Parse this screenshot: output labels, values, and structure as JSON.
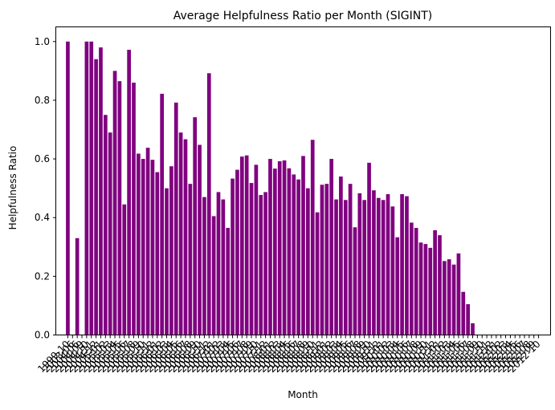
{
  "chart_data": {
    "type": "bar",
    "title": "Average Helpfulness Ratio per Month (SIGINT)",
    "xlabel": "Month",
    "ylabel": "Helpfulness Ratio",
    "ylim": [
      0,
      1.05
    ],
    "yticks": [
      0.0,
      0.2,
      0.4,
      0.6,
      0.8,
      1.0
    ],
    "ytick_labels": [
      "0.0",
      "0.2",
      "0.4",
      "0.6",
      "0.8",
      "1.0"
    ],
    "bar_color": "#800080",
    "grid": false,
    "categories": [
      "1999-10",
      "2003-06",
      "2004-06",
      "2004-09",
      "2004-10",
      "2004-11",
      "2004-12",
      "2005-01",
      "2005-02",
      "2005-03",
      "2005-04",
      "2005-05",
      "2005-06",
      "2005-07",
      "2005-08",
      "2005-09",
      "2005-10",
      "2005-11",
      "2005-12",
      "2006-01",
      "2006-02",
      "2006-03",
      "2006-04",
      "2006-05",
      "2006-06",
      "2006-07",
      "2006-08",
      "2006-09",
      "2006-10",
      "2006-11",
      "2006-12",
      "2007-01",
      "2007-02",
      "2007-03",
      "2007-04",
      "2007-05",
      "2007-06",
      "2007-07",
      "2007-08",
      "2007-09",
      "2007-10",
      "2007-11",
      "2007-12",
      "2008-01",
      "2008-02",
      "2008-03",
      "2008-04",
      "2008-05",
      "2008-06",
      "2008-07",
      "2008-08",
      "2008-09",
      "2008-10",
      "2008-11",
      "2008-12",
      "2009-01",
      "2009-02",
      "2009-03",
      "2009-04",
      "2009-05",
      "2009-06",
      "2009-07",
      "2009-08",
      "2009-09",
      "2009-10",
      "2009-11",
      "2009-12",
      "2010-01",
      "2010-02",
      "2010-03",
      "2010-04",
      "2010-05",
      "2010-06",
      "2010-07",
      "2010-08",
      "2010-09",
      "2010-10",
      "2010-11",
      "2010-12",
      "2011-01",
      "2011-02",
      "2011-03",
      "2011-04",
      "2011-05",
      "2011-06",
      "2011-07",
      "2011-08",
      "2011-09",
      "2011-10",
      "2011-11",
      "2011-12",
      "2012-01",
      "2012-02",
      "2012-03",
      "2012-04",
      "2012-05",
      "2012-06",
      "2012-07",
      "2012-08",
      "2012-09",
      "2012-10"
    ],
    "values": [
      1.0,
      null,
      0.33,
      null,
      1.0,
      1.0,
      0.94,
      0.98,
      0.75,
      0.69,
      0.9,
      0.865,
      0.445,
      0.972,
      0.86,
      0.618,
      0.6,
      0.638,
      0.597,
      0.555,
      0.822,
      0.5,
      0.575,
      0.792,
      0.69,
      0.667,
      0.515,
      0.742,
      0.648,
      0.47,
      0.892,
      0.405,
      0.487,
      0.462,
      0.365,
      0.533,
      0.563,
      0.608,
      0.612,
      0.518,
      0.58,
      0.477,
      0.487,
      0.6,
      0.567,
      0.592,
      0.595,
      0.568,
      0.547,
      0.53,
      0.61,
      0.5,
      0.665,
      0.418,
      0.512,
      0.515,
      0.6,
      0.462,
      0.54,
      0.46,
      0.515,
      0.367,
      0.483,
      0.46,
      0.587,
      0.493,
      0.467,
      0.46,
      0.48,
      0.438,
      0.333,
      0.48,
      0.473,
      0.383,
      0.365,
      0.315,
      0.31,
      0.297,
      0.357,
      0.34,
      0.252,
      0.258,
      0.24,
      0.278,
      0.147,
      0.105,
      0.04,
      null,
      null,
      null,
      null,
      null,
      null,
      null,
      null,
      null,
      null,
      null,
      null,
      null,
      null
    ]
  }
}
